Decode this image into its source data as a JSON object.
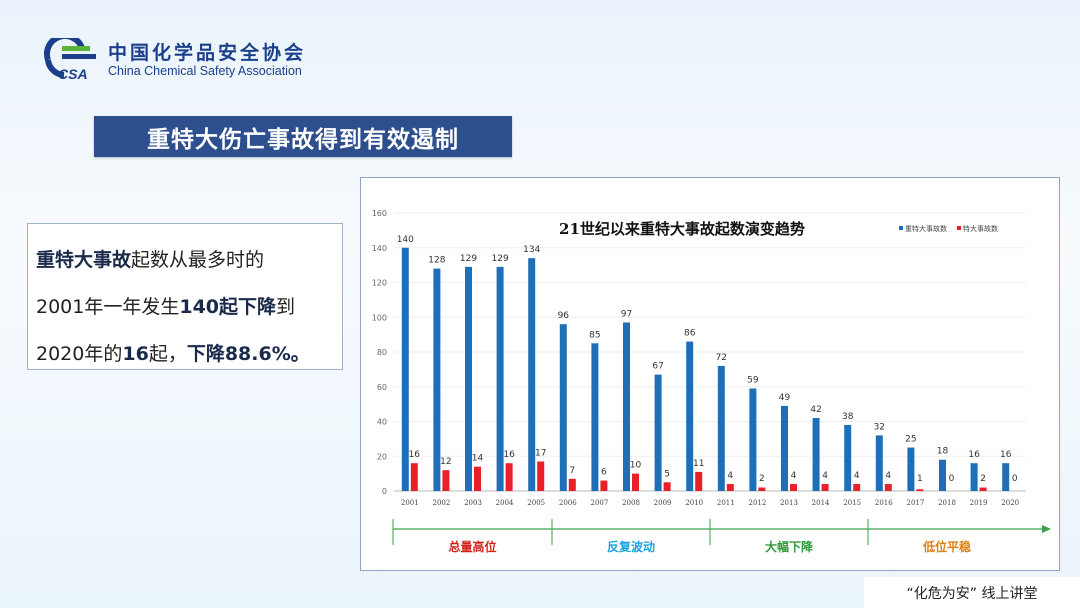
{
  "header": {
    "org_name_cn": "中国化学品安全协会",
    "org_name_en": "China Chemical Safety Association",
    "logo_text": "CSA"
  },
  "banner": {
    "title": "重特大伤亡事故得到有效遏制"
  },
  "summary": {
    "line1_bold": "重特大事故",
    "line1_rest": "起数从最多时的",
    "line2_pre": "2001年一年发生",
    "line2_bold1": "140起",
    "line2_bold2": "下降",
    "line2_post": "到",
    "line3_pre": "2020年的",
    "line3_bold1": "16",
    "line3_mid": "起，",
    "line3_bold2": "下降88.6%。"
  },
  "chart_data": {
    "type": "bar",
    "title": "21世纪以来重特大事故起数演变趋势",
    "categories": [
      "2001",
      "2002",
      "2003",
      "2004",
      "2005",
      "2006",
      "2007",
      "2008",
      "2009",
      "2010",
      "2011",
      "2012",
      "2013",
      "2014",
      "2015",
      "2016",
      "2017",
      "2018",
      "2019",
      "2020"
    ],
    "series": [
      {
        "name": "重特大事故数",
        "color": "#1f6fb8",
        "values": [
          140,
          128,
          129,
          129,
          134,
          96,
          85,
          97,
          67,
          86,
          72,
          59,
          49,
          42,
          38,
          32,
          25,
          18,
          16,
          16
        ]
      },
      {
        "name": "特大事故数",
        "color": "#e8202a",
        "values": [
          16,
          12,
          14,
          16,
          17,
          7,
          6,
          10,
          5,
          11,
          4,
          2,
          4,
          4,
          4,
          4,
          1,
          0,
          2,
          0
        ]
      }
    ],
    "ylim": [
      0,
      160
    ],
    "yticks": [
      0,
      20,
      40,
      60,
      80,
      100,
      120,
      140,
      160
    ],
    "legend_position": "top-right",
    "phases": [
      {
        "label": "总量高位",
        "color": "#d2241a",
        "start_index": 0,
        "end_index": 4
      },
      {
        "label": "反复波动",
        "color": "#1aa3dc",
        "start_index": 5,
        "end_index": 9
      },
      {
        "label": "大幅下降",
        "color": "#2f9a3c",
        "start_index": 10,
        "end_index": 14
      },
      {
        "label": "低位平稳",
        "color": "#e07d10",
        "start_index": 15,
        "end_index": 19
      }
    ]
  },
  "footer": {
    "text": "“化危为安” 线上讲堂"
  }
}
